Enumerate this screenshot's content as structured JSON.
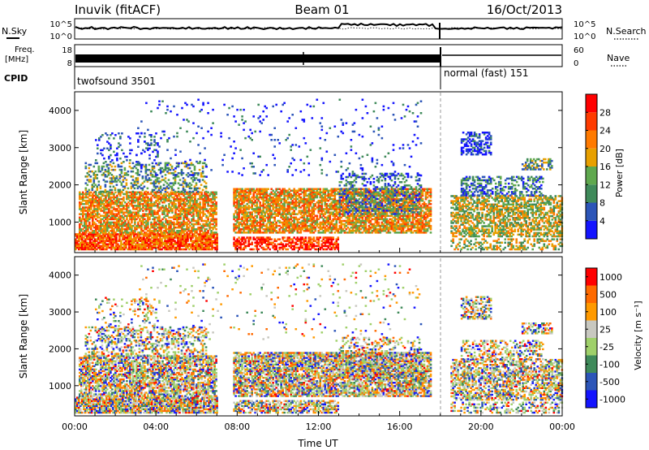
{
  "header": {
    "station": "Inuvik (fitACF)",
    "beam": "Beam 01",
    "date": "16/Oct/2013"
  },
  "side_labels": {
    "nsky": "N.Sky",
    "freq_l1": "Freq.",
    "freq_l2": "[MHz]",
    "cpid": "CPID",
    "nsearch": "N.Search",
    "nave": "Nave"
  },
  "top_panel": {
    "left_ticks": [
      "10^5",
      "10^0"
    ],
    "right_ticks": [
      "10^5",
      "10^0"
    ]
  },
  "freq_panel": {
    "left_ticks": [
      "18",
      "8"
    ],
    "right_ticks": [
      "60",
      "0"
    ]
  },
  "cpid_panel": {
    "segments": [
      {
        "label": "twofsound 3501",
        "start_h": 0,
        "end_h": 18
      },
      {
        "label": "normal (fast) 151",
        "start_h": 18,
        "end_h": 24
      }
    ]
  },
  "colors": {
    "power_scale": [
      "#1414ff",
      "#2c55b8",
      "#3f8a5a",
      "#5fa84e",
      "#e8a000",
      "#ff7a00",
      "#ff3b00",
      "#ff0000"
    ],
    "velocity_scale": [
      "#ff0000",
      "#ff6a00",
      "#ff9a00",
      "#c8c8c0",
      "#9fd06a",
      "#3f8a5a",
      "#2c55b8",
      "#1414ff"
    ]
  },
  "chart_data": [
    {
      "type": "heatmap",
      "name": "power",
      "ylabel": "Slant Range [km]",
      "ylim": [
        180,
        4500
      ],
      "yticks": [
        "1000",
        "2000",
        "3000",
        "4000"
      ],
      "xlim_hours": [
        0,
        24
      ],
      "colorbar_label": "Power [dB]",
      "colorbar_ticks": [
        "4",
        "8",
        "12",
        "16",
        "20",
        "24",
        "28"
      ],
      "colorbar_range": [
        0,
        32
      ],
      "grid": false,
      "dashed_marker_hour": 18
    },
    {
      "type": "heatmap",
      "name": "velocity",
      "ylabel": "Slant Range [km]",
      "ylim": [
        180,
        4500
      ],
      "yticks": [
        "1000",
        "2000",
        "3000",
        "4000"
      ],
      "xlim_hours": [
        0,
        24
      ],
      "xticks": [
        "00:00",
        "04:00",
        "08:00",
        "12:00",
        "16:00",
        "20:00",
        "00:00"
      ],
      "xlabel": "Time UT",
      "colorbar_label": "Velocity [m s⁻¹]",
      "colorbar_ticks": [
        "1000",
        "500",
        "100",
        "25",
        "-25",
        "-100",
        "-500",
        "-1000"
      ],
      "grid": false,
      "dashed_marker_hour": 18
    }
  ]
}
